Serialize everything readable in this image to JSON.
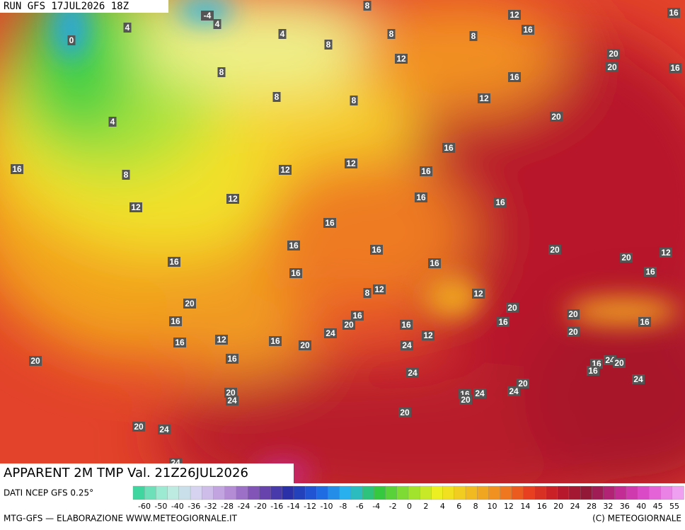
{
  "header": {
    "run": "RUN GFS 17JUL2026 18Z"
  },
  "map": {
    "contour_labels": [
      "-4",
      "4",
      "4",
      "0",
      "4",
      "8",
      "12",
      "16",
      "8",
      "8",
      "16",
      "8",
      "12",
      "20",
      "20",
      "16",
      "8",
      "16",
      "8",
      "8",
      "12",
      "20",
      "4",
      "16",
      "16",
      "8",
      "12",
      "12",
      "16",
      "12",
      "16",
      "16",
      "12",
      "16",
      "16",
      "16",
      "20",
      "20",
      "12",
      "16",
      "16",
      "16",
      "16",
      "8",
      "12",
      "12",
      "20",
      "20",
      "20",
      "16",
      "16",
      "20",
      "16",
      "16",
      "16",
      "16",
      "12",
      "16",
      "24",
      "20",
      "24",
      "12",
      "20",
      "20",
      "16",
      "24",
      "16",
      "24",
      "20",
      "16",
      "24",
      "20",
      "24",
      "16",
      "24",
      "20",
      "24",
      "20",
      "20",
      "20",
      "24",
      "24"
    ]
  },
  "footer": {
    "title": "APPARENT 2M TMP Val. 21Z26JUL2026"
  },
  "legend": {
    "source": "DATI NCEP GFS 0.25°",
    "ticks": [
      "-60",
      "-50",
      "-40",
      "-36",
      "-32",
      "-28",
      "-24",
      "-20",
      "-16",
      "-14",
      "-12",
      "-10",
      "-8",
      "-6",
      "-4",
      "-2",
      "0",
      "2",
      "4",
      "6",
      "8",
      "10",
      "12",
      "14",
      "16",
      "20",
      "24",
      "28",
      "32",
      "36",
      "40",
      "45",
      "55"
    ]
  },
  "credits": {
    "left": "MTG-GFS — ELABORAZIONE WWW.METEOGIORNALE.IT",
    "right": "(C) METEOGIORNALE"
  }
}
